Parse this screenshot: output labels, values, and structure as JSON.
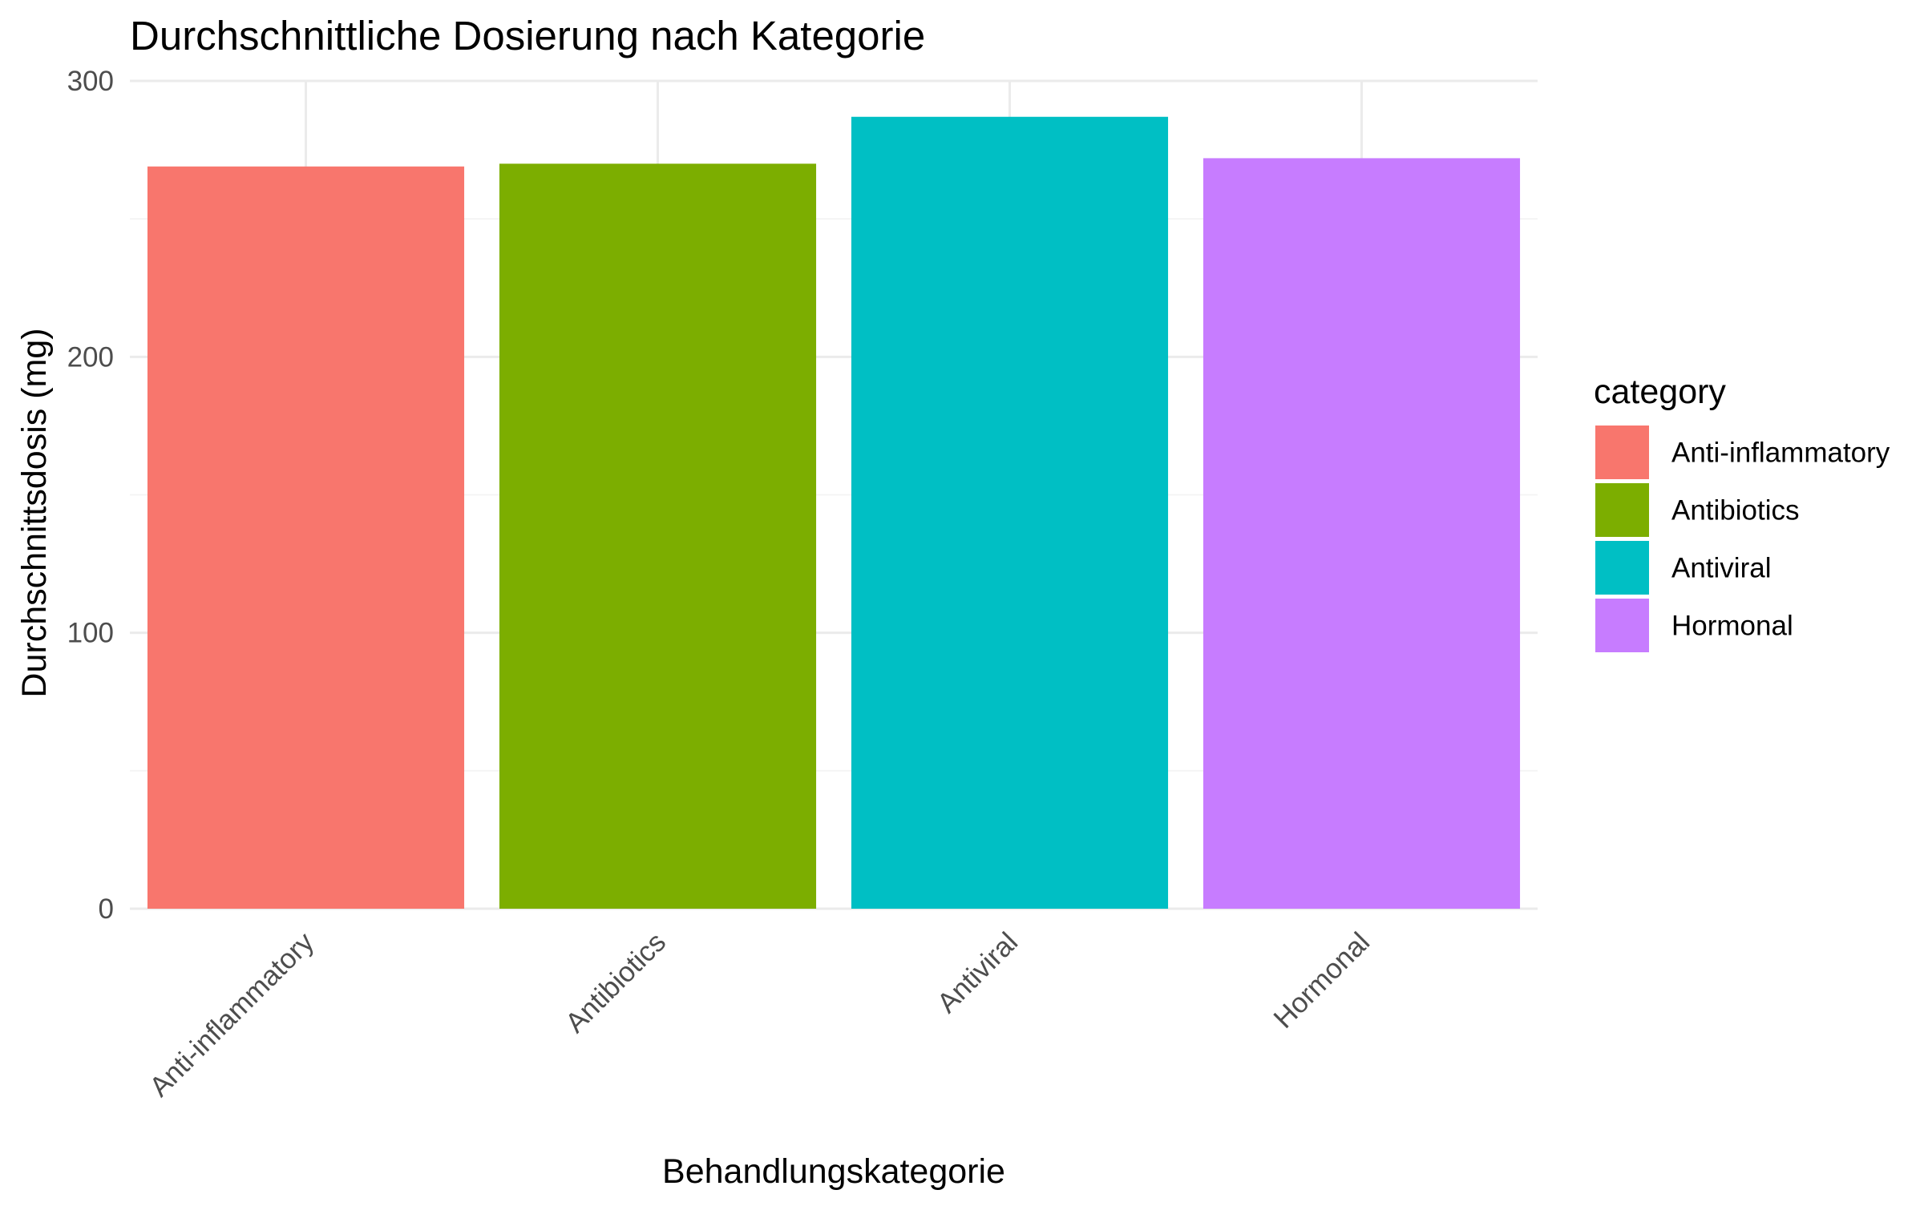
{
  "chart_data": {
    "type": "bar",
    "title": "Durchschnittliche Dosierung nach Kategorie",
    "xlabel": "Behandlungskategorie",
    "ylabel": "Durchschnittsdosis (mg)",
    "categories": [
      "Anti-inflammatory",
      "Antibiotics",
      "Antiviral",
      "Hormonal"
    ],
    "values": [
      269,
      270,
      287,
      272
    ],
    "colors": [
      "#F8766D",
      "#7CAE00",
      "#00BFC4",
      "#C77CFF"
    ],
    "ylim": [
      0,
      300
    ],
    "yticks": [
      0,
      100,
      200,
      300
    ],
    "grid": true,
    "legend": {
      "title": "category",
      "placement": "right",
      "entries": [
        "Anti-inflammatory",
        "Antibiotics",
        "Antiviral",
        "Hormonal"
      ]
    }
  }
}
